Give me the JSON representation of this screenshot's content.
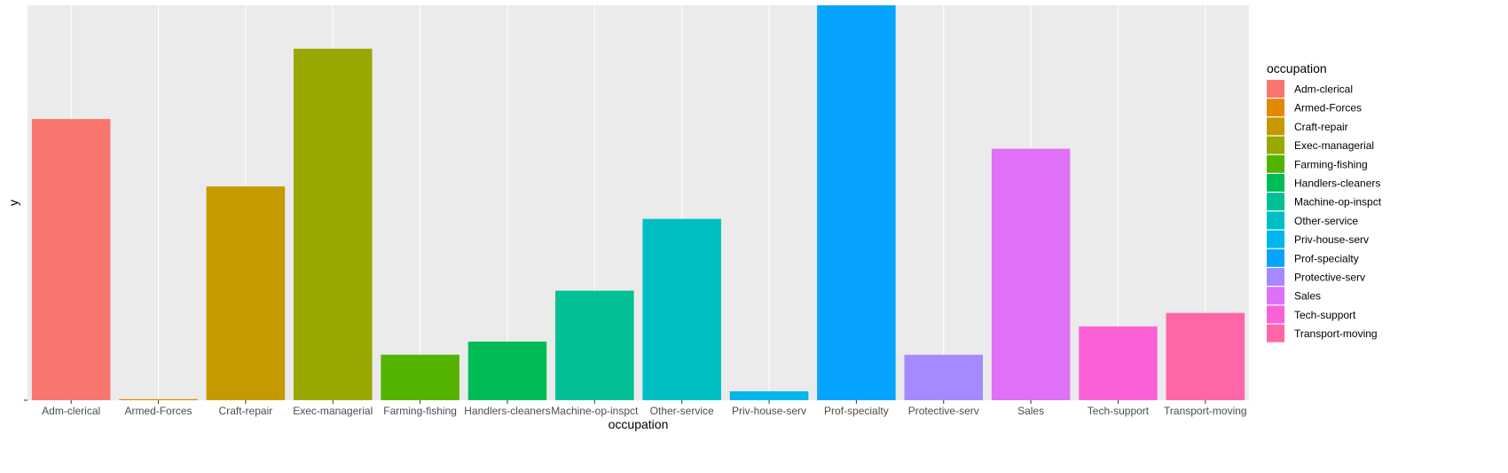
{
  "chart_data": {
    "type": "bar",
    "xlabel": "occupation",
    "ylabel": "y",
    "y_tick_labels": [
      ""
    ],
    "categories": [
      "Adm-clerical",
      "Armed-Forces",
      "Craft-repair",
      "Exec-managerial",
      "Farming-fishing",
      "Handlers-cleaners",
      "Machine-op-inspct",
      "Other-service",
      "Priv-house-serv",
      "Prof-specialty",
      "Protective-serv",
      "Sales",
      "Tech-support",
      "Transport-moving"
    ],
    "values": [
      3721,
      14,
      2829,
      4652,
      602,
      776,
      1449,
      2400,
      118,
      5226,
      601,
      3328,
      977,
      1155
    ],
    "colors": [
      "#F8766D",
      "#E38900",
      "#C49A00",
      "#99A800",
      "#53B400",
      "#00BC56",
      "#00C094",
      "#00BFC4",
      "#00B6EB",
      "#06A4FF",
      "#A58AFF",
      "#DF70F8",
      "#FB61D7",
      "#FF66A8"
    ],
    "ylim": [
      0,
      5226
    ],
    "legend": {
      "title": "occupation",
      "position": "right"
    },
    "grid": true
  }
}
